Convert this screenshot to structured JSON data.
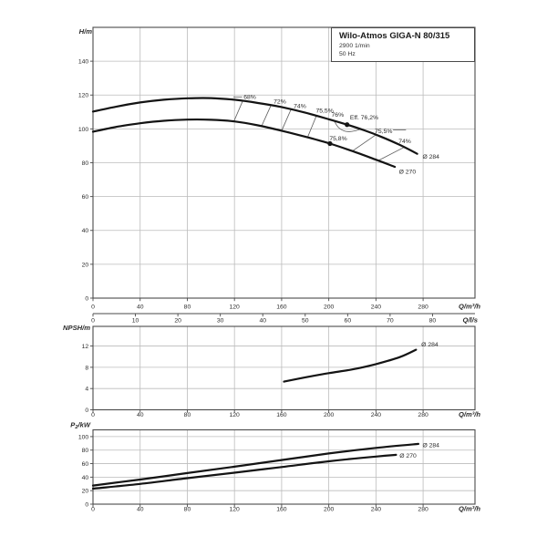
{
  "title_box": {
    "model": "Wilo-Atmos GIGA-N 80/315",
    "speed": "2900 1/min",
    "frequency": "50 Hz"
  },
  "colors": {
    "axis": "#4a4a4a",
    "grid": "#bcbcbc",
    "curve": "#141414",
    "iso": "#5b5b5b",
    "text": "#2b2b2b"
  },
  "chart_data": [
    {
      "type": "line",
      "id": "head",
      "title": "Head curves",
      "ylabel": "H/m",
      "xlabel": "Q/m³/h",
      "xlim": [
        0,
        324
      ],
      "ylim": [
        0,
        160
      ],
      "x_ticks": [
        0,
        40,
        80,
        120,
        160,
        200,
        240,
        280
      ],
      "y_ticks": [
        0,
        20,
        40,
        60,
        80,
        100,
        120,
        140
      ],
      "grid": true,
      "series": [
        {
          "name": "Ø 284",
          "x": [
            0,
            20,
            40,
            60,
            80,
            100,
            120,
            140,
            160,
            180,
            200,
            215.5,
            230,
            245,
            260,
            275
          ],
          "y": [
            110.2,
            113.2,
            115.6,
            117.2,
            118.1,
            118.2,
            117.2,
            115.3,
            112.9,
            109.6,
            105.7,
            102.5,
            99.2,
            95.2,
            90.6,
            85.3
          ]
        },
        {
          "name": "Ø 270",
          "x": [
            0,
            20,
            40,
            60,
            80,
            100,
            120,
            140,
            160,
            180,
            201,
            220,
            240,
            256
          ],
          "y": [
            98.3,
            101.2,
            103.3,
            104.8,
            105.5,
            105.4,
            104.4,
            102.1,
            98.9,
            95.4,
            91.3,
            86.9,
            81.8,
            77.6
          ]
        }
      ],
      "series_labels": [
        {
          "text": "Ø 284",
          "q": 279.5,
          "v": 82.5,
          "anchor": "start"
        },
        {
          "text": "Ø 270",
          "q": 259.5,
          "v": 73.6,
          "anchor": "start"
        }
      ],
      "efficiency_labels": [
        {
          "text": "68%",
          "q": 133,
          "v": 117.6
        },
        {
          "text": "72%",
          "q": 158.5,
          "v": 114.9
        },
        {
          "text": "74%",
          "q": 175.5,
          "v": 112.2
        },
        {
          "text": "75,5%",
          "q": 196.5,
          "v": 109.5
        },
        {
          "text": "76%",
          "q": 207.5,
          "v": 107.3
        },
        {
          "text": "Eff. 76,2%",
          "q": 230,
          "v": 105.7
        },
        {
          "text": "75,8%",
          "q": 208,
          "v": 93.3
        },
        {
          "text": "75,5%",
          "q": 246.5,
          "v": 97.4
        },
        {
          "text": "74%",
          "q": 264.5,
          "v": 91.7
        }
      ],
      "efficiency_lines": [
        {
          "q_upper": 127,
          "q_lower": 119.5
        },
        {
          "q_upper": 151,
          "q_lower": 143
        },
        {
          "q_upper": 168,
          "q_lower": 160
        },
        {
          "q_upper": 189.5,
          "q_lower": 182
        },
        {
          "q_upper": 240,
          "q_lower": 220
        },
        {
          "q_upper": 264,
          "q_lower": 242
        }
      ],
      "efficiency_island": [
        [
          204.5,
          104.8
        ],
        [
          208,
          101
        ],
        [
          213,
          98.8
        ],
        [
          218,
          98.4
        ],
        [
          222.5,
          98.9
        ],
        [
          227,
          99.8
        ]
      ],
      "markers": [
        {
          "q": 215.5,
          "v": 102.5,
          "name": "bep-marker-284"
        },
        {
          "q": 201,
          "v": 91.3,
          "name": "bep-marker-270"
        }
      ],
      "leaders": [
        {
          "q1": 119,
          "v1": 118.9,
          "q2": 126.5,
          "v2": 118.9
        },
        {
          "q1": 254.5,
          "v1": 99.4,
          "q2": 265.5,
          "v2": 99.4
        }
      ]
    },
    {
      "type": "axis",
      "id": "lps",
      "xlabel": "Q/l/s",
      "x_ticks": [
        0,
        10,
        20,
        30,
        40,
        50,
        60,
        70,
        80
      ],
      "m3h_per_unit": 3.6
    },
    {
      "type": "line",
      "id": "npsh",
      "title": "NPSH curve",
      "ylabel": "NPSH/m",
      "xlabel": "Q/m³/h",
      "xlim": [
        0,
        324
      ],
      "ylim": [
        0,
        15.7
      ],
      "x_ticks": [
        0,
        40,
        80,
        120,
        160,
        200,
        240,
        280
      ],
      "y_ticks": [
        0,
        4,
        8,
        12
      ],
      "grid": true,
      "series": [
        {
          "name": "Ø 284",
          "x": [
            162,
            180,
            200,
            220,
            240,
            260,
            274
          ],
          "y": [
            5.3,
            6.1,
            6.9,
            7.6,
            8.6,
            9.9,
            11.3
          ]
        }
      ],
      "series_labels": [
        {
          "text": "Ø 284",
          "q": 278.5,
          "v": 11.9,
          "anchor": "start"
        }
      ]
    },
    {
      "type": "line",
      "id": "p2",
      "title": "Shaft power curves",
      "ylabel": "P₂/kW",
      "xlabel": "Q/m³/h",
      "xlim": [
        0,
        324
      ],
      "ylim": [
        0,
        110
      ],
      "x_ticks": [
        0,
        40,
        80,
        120,
        160,
        200,
        240,
        280
      ],
      "y_ticks": [
        0,
        20,
        40,
        60,
        80,
        100
      ],
      "grid": true,
      "series": [
        {
          "name": "Ø 284",
          "x": [
            0,
            40,
            80,
            120,
            160,
            200,
            240,
            276
          ],
          "y": [
            27.5,
            36.5,
            46,
            55.5,
            65.3,
            75,
            83.3,
            89.2
          ]
        },
        {
          "name": "Ø 270",
          "x": [
            0,
            40,
            80,
            120,
            160,
            200,
            240,
            257
          ],
          "y": [
            23,
            30,
            38.5,
            46.5,
            55,
            63.5,
            70.5,
            73
          ]
        }
      ],
      "series_labels": [
        {
          "text": "Ø 284",
          "q": 279.5,
          "v": 84.4,
          "anchor": "start"
        },
        {
          "text": "Ø 270",
          "q": 260,
          "v": 68.8,
          "anchor": "start"
        }
      ]
    }
  ]
}
